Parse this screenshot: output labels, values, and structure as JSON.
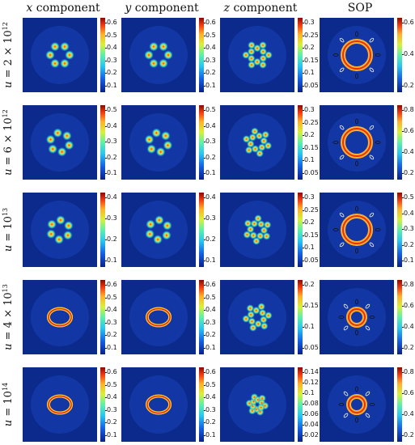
{
  "columns": [
    {
      "symbol": "x",
      "suffix": " component"
    },
    {
      "symbol": "y",
      "suffix": " component"
    },
    {
      "symbol": "z",
      "suffix": " component"
    },
    {
      "symbol": "",
      "suffix": "SOP"
    }
  ],
  "rows": [
    {
      "label_prefix": "u = ",
      "label_value": "2 × 10",
      "label_exp": "12",
      "ticks": [
        [
          "0.6",
          "0.5",
          "0.4",
          "0.3",
          "0.2",
          "0.1"
        ],
        [
          "0.6",
          "0.5",
          "0.4",
          "0.3",
          "0.2",
          "0.1"
        ],
        [
          "0.3",
          "0.25",
          "0.2",
          "0.15",
          "0.1",
          "0.05"
        ],
        [
          "0.6",
          "0.4",
          "0.2"
        ]
      ]
    },
    {
      "label_prefix": "u = ",
      "label_value": "6 × 10",
      "label_exp": "12",
      "ticks": [
        [
          "0.5",
          "0.4",
          "0.3",
          "0.2",
          "0.1"
        ],
        [
          "0.5",
          "0.4",
          "0.3",
          "0.2",
          "0.1"
        ],
        [
          "0.3",
          "0.25",
          "0.2",
          "0.15",
          "0.1",
          "0.05"
        ],
        [
          "0.8",
          "0.6",
          "0.4",
          "0.2"
        ]
      ]
    },
    {
      "label_prefix": "u = ",
      "label_value": "10",
      "label_exp": "13",
      "ticks": [
        [
          "0.4",
          "0.3",
          "0.2",
          "0.1"
        ],
        [
          "0.4",
          "0.3",
          "0.2",
          "0.1"
        ],
        [
          "0.3",
          "0.25",
          "0.2",
          "0.15",
          "0.1",
          "0.05"
        ],
        [
          "0.5",
          "0.4",
          "0.3",
          "0.2",
          "0.1"
        ]
      ]
    },
    {
      "label_prefix": "u = ",
      "label_value": "4 × 10",
      "label_exp": "13",
      "ticks": [
        [
          "0.6",
          "0.5",
          "0.4",
          "0.3",
          "0.2",
          "0.1"
        ],
        [
          "0.6",
          "0.5",
          "0.4",
          "0.3",
          "0.2",
          "0.1"
        ],
        [
          "0.2",
          "0.15",
          "0.1",
          "0.05"
        ],
        [
          "0.8",
          "0.6",
          "0.4",
          "0.2"
        ]
      ]
    },
    {
      "label_prefix": "u = ",
      "label_value": "10",
      "label_exp": "14",
      "ticks": [
        [
          "0.6",
          "0.5",
          "0.4",
          "0.3",
          "0.2",
          "0.1"
        ],
        [
          "0.6",
          "0.5",
          "0.4",
          "0.3",
          "0.2",
          "0.1"
        ],
        [
          "0.14",
          "0.12",
          "0.1",
          "0.08",
          "0.06",
          "0.04",
          "0.02"
        ],
        [
          "0.8",
          "0.6",
          "0.4",
          "0.2"
        ]
      ]
    }
  ]
}
